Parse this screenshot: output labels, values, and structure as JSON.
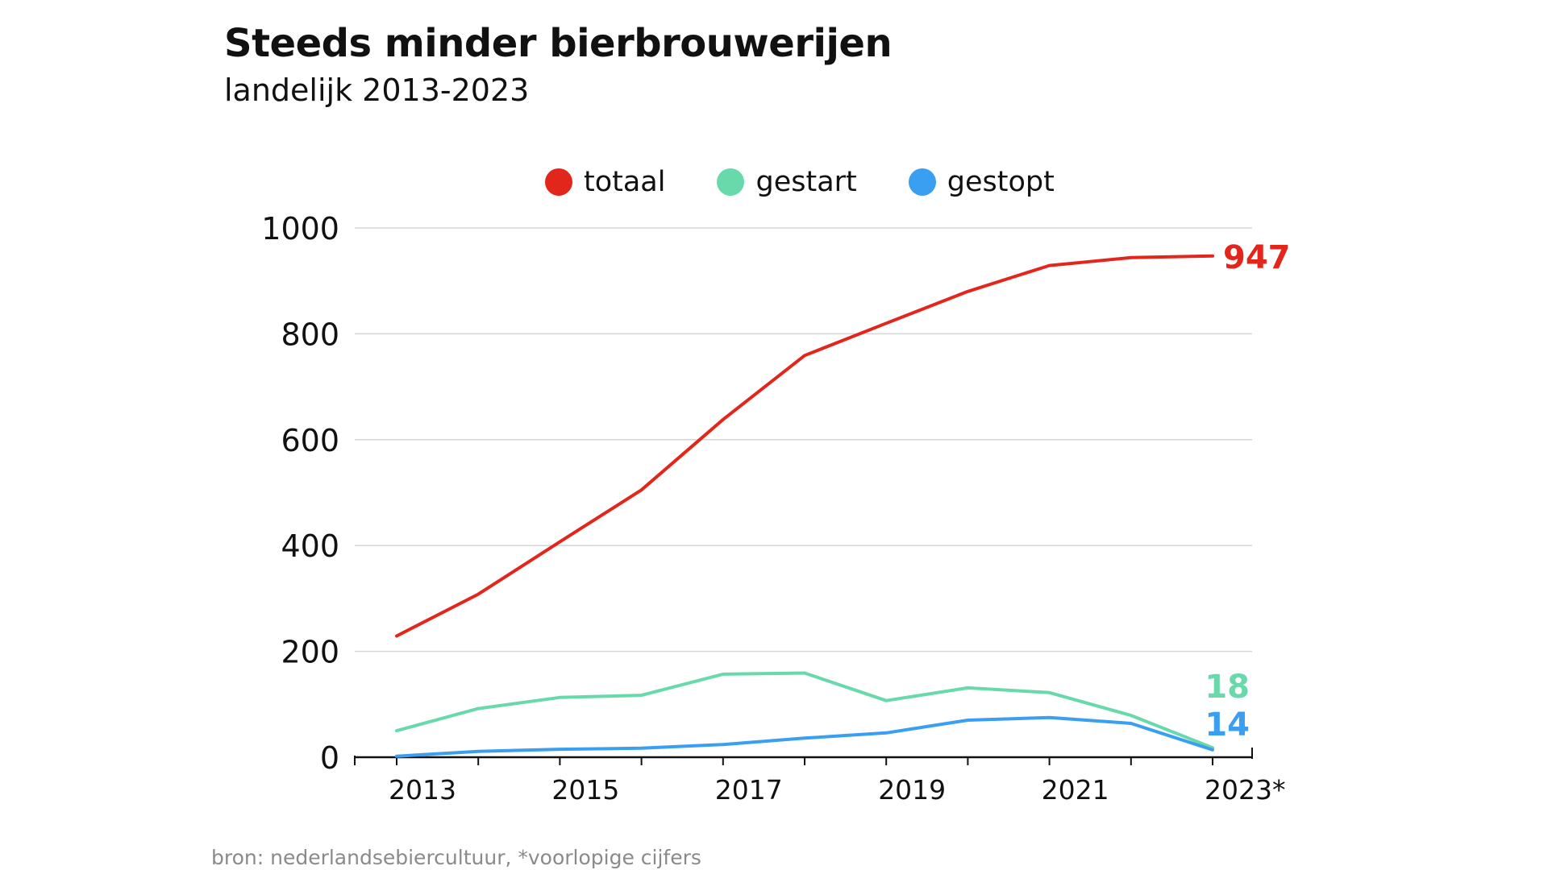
{
  "header": {
    "title": "Steeds minder bierbrouwerijen",
    "subtitle": "landelijk 2013-2023"
  },
  "footer": {
    "source": "bron: nederlandsebiercultuur, *voorlopige cijfers"
  },
  "chart_data": {
    "type": "line",
    "title": "Steeds minder bierbrouwerijen",
    "subtitle": "landelijk 2013-2023",
    "x": [
      2013,
      2014,
      2015,
      2016,
      2017,
      2018,
      2019,
      2020,
      2021,
      2022,
      2023
    ],
    "xtick_values": [
      2013,
      2015,
      2017,
      2019,
      2021,
      2023
    ],
    "xtick_labels": [
      "2013",
      "2015",
      "2017",
      "2019",
      "2021",
      "2023*"
    ],
    "ylim": [
      0,
      1000
    ],
    "yticks": [
      0,
      200,
      400,
      600,
      800,
      1000
    ],
    "grid": true,
    "legend_position": "top-center",
    "series": [
      {
        "name": "totaal",
        "color": "#e3261b",
        "values": [
          229,
          308,
          407,
          505,
          638,
          759,
          820,
          880,
          929,
          944,
          947
        ],
        "end_label": "947"
      },
      {
        "name": "gestart",
        "color": "#67d9aa",
        "values": [
          50,
          92,
          113,
          117,
          157,
          159,
          107,
          131,
          122,
          79,
          18
        ],
        "end_label": "18"
      },
      {
        "name": "gestopt",
        "color": "#3a9ff0",
        "values": [
          2,
          11,
          15,
          17,
          24,
          36,
          46,
          70,
          75,
          64,
          14
        ],
        "end_label": "14"
      }
    ]
  }
}
